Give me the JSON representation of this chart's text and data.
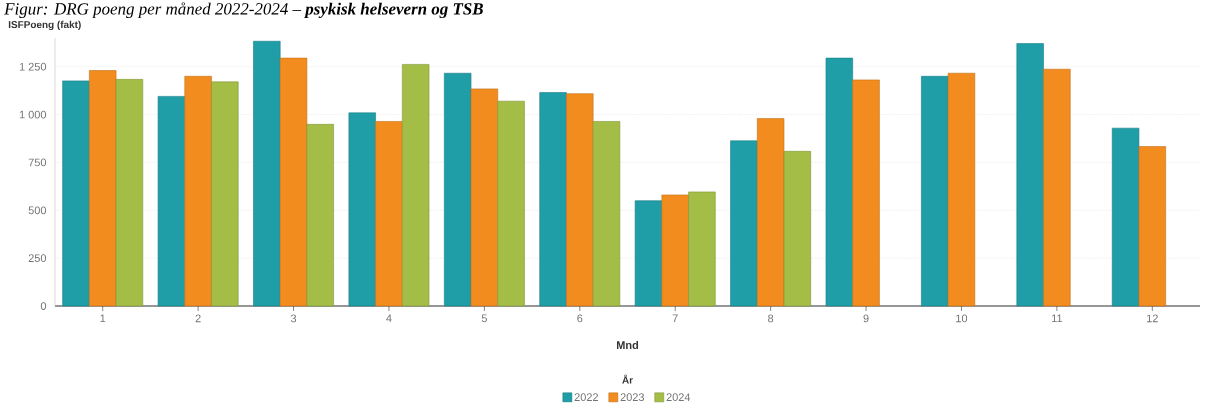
{
  "chart_data": {
    "type": "bar",
    "title": "Figur: DRG poeng per måned 2022-2024 – **psykisk helsevern og TSB**",
    "ylabel": "ISFPoeng (fakt)",
    "xlabel": "Mnd",
    "legend_title": "År",
    "categories": [
      "1",
      "2",
      "3",
      "4",
      "5",
      "6",
      "7",
      "8",
      "9",
      "10",
      "11",
      "12"
    ],
    "series": [
      {
        "name": "2022",
        "color": "#1f9ea8",
        "values": [
          1176,
          1095,
          1383,
          1009,
          1216,
          1115,
          550,
          863,
          1295,
          1200,
          1371,
          929
        ]
      },
      {
        "name": "2023",
        "color": "#f28c1e",
        "values": [
          1230,
          1200,
          1295,
          964,
          1134,
          1109,
          580,
          979,
          1181,
          1216,
          1237,
          833
        ]
      },
      {
        "name": "2024",
        "color": "#a3bd47",
        "values": [
          1184,
          1171,
          949,
          1262,
          1070,
          964,
          596,
          808,
          null,
          null,
          null,
          null
        ]
      }
    ],
    "ylim": [
      0,
      1400
    ],
    "yticks": [
      0,
      250,
      500,
      750,
      {
        "value": 1000,
        "label": "1 000"
      },
      {
        "value": 1250,
        "label": "1 250"
      }
    ],
    "grid": "y",
    "legend": "bottom"
  }
}
